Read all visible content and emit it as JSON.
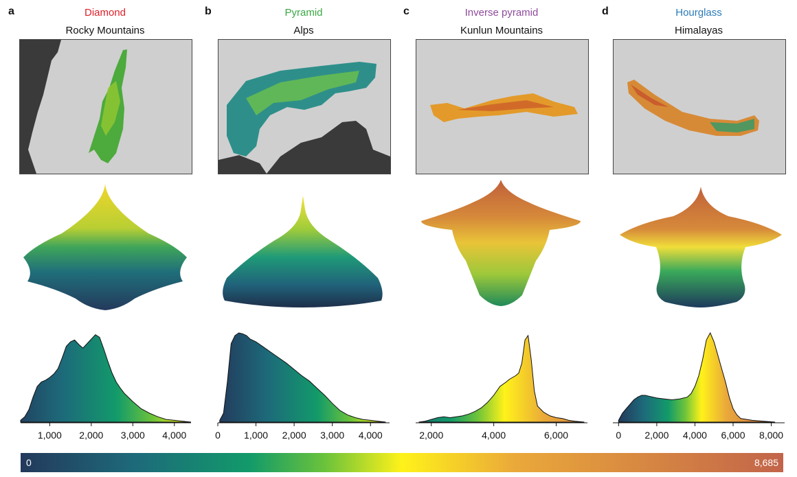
{
  "panels": [
    {
      "letter": "a",
      "shape": "Diamond",
      "range": "Rocky Mountains",
      "shape_color": "#e0202a"
    },
    {
      "letter": "b",
      "shape": "Pyramid",
      "range": "Alps",
      "shape_color": "#3aa843"
    },
    {
      "letter": "c",
      "shape": "Inverse pyramid",
      "range": "Kunlun Mountains",
      "shape_color": "#8e4a9c"
    },
    {
      "letter": "d",
      "shape": "Hourglass",
      "range": "Himalayas",
      "shape_color": "#2a7ab8"
    }
  ],
  "colorbar": {
    "min_label": "0",
    "max_label": "8,685",
    "min": 0,
    "max": 8685
  },
  "chart_data": [
    {
      "type": "area",
      "title": "Rocky Mountains",
      "xlim": [
        300,
        4400
      ],
      "xticks": [
        "1,000",
        "2,000",
        "3,000",
        "4,000"
      ],
      "xtick_values": [
        1000,
        2000,
        3000,
        4000
      ],
      "x": [
        300,
        400,
        500,
        600,
        700,
        800,
        900,
        1000,
        1100,
        1200,
        1300,
        1400,
        1500,
        1600,
        1700,
        1800,
        1900,
        2000,
        2100,
        2200,
        2300,
        2400,
        2500,
        2600,
        2700,
        2800,
        3000,
        3200,
        3400,
        3600,
        3800,
        4000,
        4200,
        4400
      ],
      "y": [
        0.02,
        0.06,
        0.14,
        0.28,
        0.4,
        0.45,
        0.47,
        0.5,
        0.54,
        0.6,
        0.72,
        0.85,
        0.9,
        0.92,
        0.87,
        0.83,
        0.88,
        0.93,
        0.98,
        0.95,
        0.82,
        0.68,
        0.55,
        0.45,
        0.38,
        0.32,
        0.23,
        0.15,
        0.1,
        0.06,
        0.03,
        0.02,
        0.01,
        0.0
      ]
    },
    {
      "type": "area",
      "title": "Alps",
      "xlim": [
        0,
        4500
      ],
      "xticks": [
        "0",
        "1,000",
        "2,000",
        "3,000",
        "4,000"
      ],
      "xtick_values": [
        0,
        1000,
        2000,
        3000,
        4000
      ],
      "x": [
        50,
        150,
        250,
        350,
        450,
        550,
        650,
        750,
        850,
        1000,
        1200,
        1400,
        1600,
        1800,
        2000,
        2200,
        2400,
        2600,
        2800,
        3000,
        3200,
        3400,
        3600,
        3800,
        4000,
        4200,
        4400
      ],
      "y": [
        0.02,
        0.1,
        0.45,
        0.88,
        0.97,
        1.0,
        0.99,
        0.97,
        0.93,
        0.9,
        0.84,
        0.78,
        0.72,
        0.66,
        0.59,
        0.52,
        0.46,
        0.38,
        0.3,
        0.21,
        0.13,
        0.08,
        0.05,
        0.03,
        0.02,
        0.01,
        0.0
      ]
    },
    {
      "type": "area",
      "title": "Kunlun Mountains",
      "xlim": [
        1500,
        7000
      ],
      "xticks": [
        "2,000",
        "4,000",
        "6,000"
      ],
      "xtick_values": [
        2000,
        4000,
        6000
      ],
      "x": [
        1600,
        1800,
        2000,
        2200,
        2400,
        2600,
        2800,
        3000,
        3200,
        3400,
        3600,
        3800,
        4000,
        4200,
        4400,
        4500,
        4600,
        4700,
        4800,
        4900,
        5000,
        5100,
        5200,
        5300,
        5400,
        5600,
        5800,
        6000,
        6200,
        6400,
        6600,
        6900
      ],
      "y": [
        0.0,
        0.01,
        0.03,
        0.05,
        0.06,
        0.05,
        0.06,
        0.07,
        0.09,
        0.12,
        0.16,
        0.22,
        0.3,
        0.4,
        0.45,
        0.48,
        0.5,
        0.52,
        0.55,
        0.66,
        0.92,
        0.97,
        0.7,
        0.35,
        0.18,
        0.11,
        0.07,
        0.05,
        0.04,
        0.02,
        0.01,
        0.0
      ]
    },
    {
      "type": "area",
      "title": "Himalayas",
      "xlim": [
        -300,
        8700
      ],
      "xticks": [
        "0",
        "2,000",
        "4,000",
        "6,000",
        "8,000"
      ],
      "xtick_values": [
        0,
        2000,
        4000,
        6000,
        8000
      ],
      "x": [
        0,
        200,
        400,
        600,
        800,
        1000,
        1200,
        1400,
        1600,
        1800,
        2000,
        2400,
        2800,
        3200,
        3600,
        3800,
        4000,
        4200,
        4400,
        4600,
        4800,
        5000,
        5200,
        5400,
        5600,
        5800,
        6000,
        6200,
        6400,
        7000,
        7600,
        8200
      ],
      "y": [
        0.02,
        0.1,
        0.15,
        0.2,
        0.25,
        0.28,
        0.3,
        0.3,
        0.29,
        0.28,
        0.27,
        0.26,
        0.25,
        0.26,
        0.28,
        0.32,
        0.4,
        0.52,
        0.7,
        0.92,
        1.0,
        0.9,
        0.75,
        0.6,
        0.45,
        0.28,
        0.15,
        0.08,
        0.04,
        0.02,
        0.01,
        0.0
      ]
    }
  ]
}
